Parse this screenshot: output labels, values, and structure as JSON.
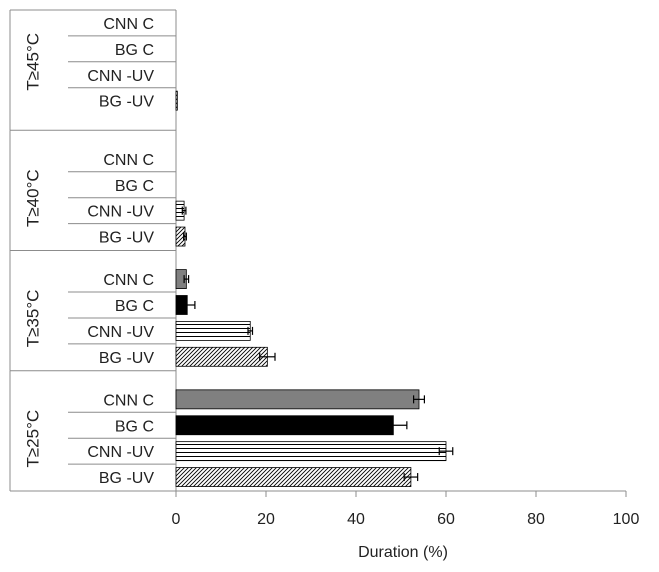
{
  "chart_data": {
    "type": "bar",
    "orientation": "horizontal",
    "xlabel": "Duration (%)",
    "ylabel": "",
    "xlim": [
      0,
      100
    ],
    "xticks": [
      0,
      20,
      40,
      60,
      80,
      100
    ],
    "grid": true,
    "legend": "none",
    "groups": [
      {
        "label": "T≥45°C",
        "bars": [
          {
            "label": "CNN C",
            "value": 0,
            "error": 0,
            "fill": "gray"
          },
          {
            "label": "BG C",
            "value": 0,
            "error": 0,
            "fill": "black"
          },
          {
            "label": "CNN -UV",
            "value": 0,
            "error": 0,
            "fill": "horizontal-lines"
          },
          {
            "label": "BG -UV",
            "value": 0.3,
            "error": 0,
            "fill": "diagonal-hatch"
          }
        ]
      },
      {
        "label": "T≥40°C",
        "bars": [
          {
            "label": "CNN C",
            "value": 0,
            "error": 0,
            "fill": "gray"
          },
          {
            "label": "BG C",
            "value": 0,
            "error": 0,
            "fill": "black"
          },
          {
            "label": "CNN -UV",
            "value": 1.8,
            "error": 0.4,
            "fill": "horizontal-lines"
          },
          {
            "label": "BG -UV",
            "value": 2,
            "error": 0.3,
            "fill": "diagonal-hatch"
          }
        ]
      },
      {
        "label": "T≥35°C",
        "bars": [
          {
            "label": "CNN C",
            "value": 2.3,
            "error": 0.5,
            "fill": "gray"
          },
          {
            "label": "BG C",
            "value": 2.5,
            "error": 1.7,
            "fill": "black"
          },
          {
            "label": "CNN -UV",
            "value": 16.5,
            "error": 0.5,
            "fill": "horizontal-lines"
          },
          {
            "label": "BG -UV",
            "value": 20.3,
            "error": 1.7,
            "fill": "diagonal-hatch"
          }
        ]
      },
      {
        "label": "T≥25°C",
        "bars": [
          {
            "label": "CNN C",
            "value": 54,
            "error": 1.2,
            "fill": "gray"
          },
          {
            "label": "BG C",
            "value": 48.3,
            "error": 3,
            "fill": "black"
          },
          {
            "label": "CNN -UV",
            "value": 60,
            "error": 1.5,
            "fill": "horizontal-lines"
          },
          {
            "label": "BG -UV",
            "value": 52.2,
            "error": 1.5,
            "fill": "diagonal-hatch"
          }
        ]
      }
    ]
  },
  "colors": {
    "gray": "#808080",
    "black": "#000000",
    "axis": "#8c8c8c",
    "gridline": "#b3b3b3",
    "text": "#222222"
  }
}
